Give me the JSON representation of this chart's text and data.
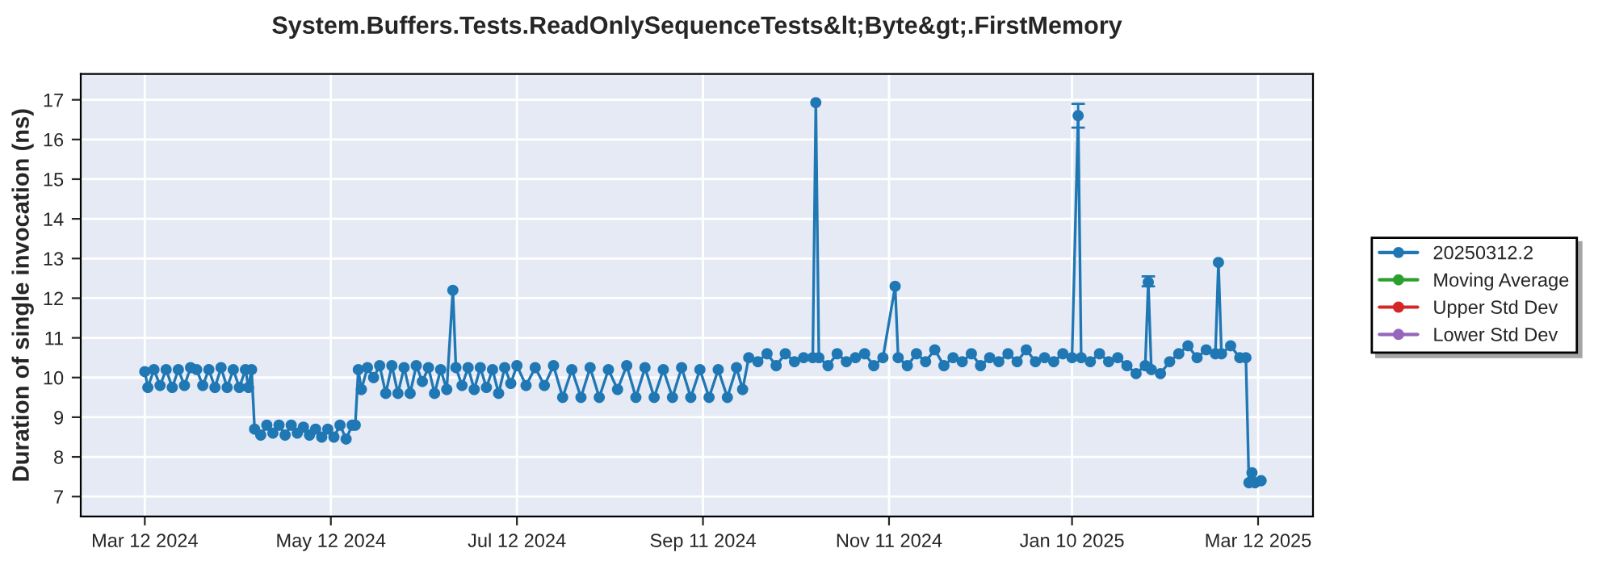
{
  "chart_data": {
    "type": "line",
    "title": "System.Buffers.Tests.ReadOnlySequenceTests&lt;Byte&gt;.FirstMemory",
    "ylabel": "Duration of single invocation (ns)",
    "xlim": [
      "2024-02-20",
      "2025-03-30"
    ],
    "xticks": [
      {
        "value": "2024-03-12",
        "label": "Mar 12 2024"
      },
      {
        "value": "2024-05-12",
        "label": "May 12 2024"
      },
      {
        "value": "2024-07-12",
        "label": "Jul 12 2024"
      },
      {
        "value": "2024-09-11",
        "label": "Sep 11 2024"
      },
      {
        "value": "2024-11-11",
        "label": "Nov 11 2024"
      },
      {
        "value": "2025-01-10",
        "label": "Jan 10 2025"
      },
      {
        "value": "2025-03-12",
        "label": "Mar 12 2025"
      }
    ],
    "ylim": [
      6.5,
      17.65
    ],
    "yticks": [
      7,
      8,
      9,
      10,
      11,
      12,
      13,
      14,
      15,
      16,
      17
    ],
    "grid": true,
    "legend": "right",
    "marker": "circle",
    "line_style": "solid",
    "series": [
      {
        "name": "20250312.2",
        "color": "#1f77b4",
        "x": [
          "2024-03-12",
          "2024-03-13",
          "2024-03-15",
          "2024-03-17",
          "2024-03-19",
          "2024-03-21",
          "2024-03-23",
          "2024-03-25",
          "2024-03-27",
          "2024-03-29",
          "2024-03-31",
          "2024-04-02",
          "2024-04-04",
          "2024-04-06",
          "2024-04-08",
          "2024-04-10",
          "2024-04-12",
          "2024-04-14",
          "2024-04-15",
          "2024-04-16",
          "2024-04-17",
          "2024-04-19",
          "2024-04-21",
          "2024-04-23",
          "2024-04-25",
          "2024-04-27",
          "2024-04-29",
          "2024-05-01",
          "2024-05-03",
          "2024-05-05",
          "2024-05-07",
          "2024-05-09",
          "2024-05-11",
          "2024-05-13",
          "2024-05-15",
          "2024-05-17",
          "2024-05-19",
          "2024-05-20",
          "2024-05-21",
          "2024-05-22",
          "2024-05-24",
          "2024-05-26",
          "2024-05-28",
          "2024-05-30",
          "2024-06-01",
          "2024-06-03",
          "2024-06-05",
          "2024-06-07",
          "2024-06-09",
          "2024-06-11",
          "2024-06-13",
          "2024-06-15",
          "2024-06-17",
          "2024-06-19",
          "2024-06-21",
          "2024-06-22",
          "2024-06-24",
          "2024-06-26",
          "2024-06-28",
          "2024-06-30",
          "2024-07-02",
          "2024-07-04",
          "2024-07-06",
          "2024-07-08",
          "2024-07-10",
          "2024-07-12",
          "2024-07-15",
          "2024-07-18",
          "2024-07-21",
          "2024-07-24",
          "2024-07-27",
          "2024-07-30",
          "2024-08-02",
          "2024-08-05",
          "2024-08-08",
          "2024-08-11",
          "2024-08-14",
          "2024-08-17",
          "2024-08-20",
          "2024-08-23",
          "2024-08-26",
          "2024-08-29",
          "2024-09-01",
          "2024-09-04",
          "2024-09-07",
          "2024-09-10",
          "2024-09-13",
          "2024-09-16",
          "2024-09-19",
          "2024-09-22",
          "2024-09-24",
          "2024-09-26",
          "2024-09-29",
          "2024-10-02",
          "2024-10-05",
          "2024-10-08",
          "2024-10-11",
          "2024-10-14",
          "2024-10-17",
          "2024-10-18",
          "2024-10-19",
          "2024-10-22",
          "2024-10-25",
          "2024-10-28",
          "2024-10-31",
          "2024-11-03",
          "2024-11-06",
          "2024-11-09",
          "2024-11-13",
          "2024-11-14",
          "2024-11-17",
          "2024-11-20",
          "2024-11-23",
          "2024-11-26",
          "2024-11-29",
          "2024-12-02",
          "2024-12-05",
          "2024-12-08",
          "2024-12-11",
          "2024-12-14",
          "2024-12-17",
          "2024-12-20",
          "2024-12-23",
          "2024-12-26",
          "2024-12-29",
          "2025-01-01",
          "2025-01-04",
          "2025-01-07",
          "2025-01-10",
          "2025-01-12",
          "2025-01-13",
          "2025-01-16",
          "2025-01-19",
          "2025-01-22",
          "2025-01-25",
          "2025-01-28",
          "2025-01-31",
          "2025-02-03",
          "2025-02-04",
          "2025-02-05",
          "2025-02-08",
          "2025-02-11",
          "2025-02-14",
          "2025-02-17",
          "2025-02-20",
          "2025-02-23",
          "2025-02-26",
          "2025-02-27",
          "2025-02-28",
          "2025-03-03",
          "2025-03-06",
          "2025-03-08",
          "2025-03-09",
          "2025-03-10",
          "2025-03-11",
          "2025-03-13"
        ],
        "values": [
          10.15,
          9.75,
          10.2,
          9.8,
          10.2,
          9.75,
          10.2,
          9.8,
          10.25,
          10.2,
          9.8,
          10.2,
          9.75,
          10.25,
          9.75,
          10.2,
          9.75,
          10.2,
          9.75,
          10.2,
          8.7,
          8.55,
          8.8,
          8.6,
          8.8,
          8.55,
          8.8,
          8.6,
          8.75,
          8.55,
          8.7,
          8.5,
          8.7,
          8.5,
          8.8,
          8.45,
          8.8,
          8.8,
          10.2,
          9.7,
          10.25,
          10.0,
          10.3,
          9.6,
          10.3,
          9.6,
          10.25,
          9.6,
          10.3,
          9.9,
          10.25,
          9.6,
          10.2,
          9.7,
          12.2,
          10.25,
          9.8,
          10.25,
          9.7,
          10.25,
          9.75,
          10.2,
          9.6,
          10.25,
          9.85,
          10.3,
          9.8,
          10.25,
          9.8,
          10.3,
          9.5,
          10.2,
          9.5,
          10.25,
          9.5,
          10.2,
          9.7,
          10.3,
          9.5,
          10.25,
          9.5,
          10.2,
          9.5,
          10.25,
          9.5,
          10.2,
          9.5,
          10.2,
          9.5,
          10.25,
          9.7,
          10.5,
          10.4,
          10.6,
          10.3,
          10.6,
          10.4,
          10.5,
          10.5,
          16.93,
          10.5,
          10.3,
          10.6,
          10.4,
          10.5,
          10.6,
          10.3,
          10.5,
          12.3,
          10.5,
          10.3,
          10.6,
          10.4,
          10.7,
          10.3,
          10.5,
          10.4,
          10.6,
          10.3,
          10.5,
          10.4,
          10.6,
          10.4,
          10.7,
          10.4,
          10.5,
          10.4,
          10.6,
          10.5,
          16.6,
          10.5,
          10.4,
          10.6,
          10.4,
          10.5,
          10.3,
          10.1,
          10.3,
          12.4,
          10.2,
          10.1,
          10.4,
          10.6,
          10.8,
          10.5,
          10.7,
          10.6,
          12.9,
          10.6,
          10.8,
          10.5,
          10.5,
          7.35,
          7.6,
          7.35,
          7.4
        ],
        "errors": [
          null,
          null,
          null,
          null,
          null,
          null,
          null,
          null,
          null,
          null,
          null,
          null,
          null,
          null,
          null,
          null,
          null,
          null,
          null,
          null,
          null,
          null,
          null,
          null,
          null,
          null,
          null,
          null,
          null,
          null,
          null,
          null,
          null,
          null,
          null,
          null,
          null,
          null,
          null,
          null,
          null,
          null,
          null,
          null,
          null,
          null,
          null,
          null,
          null,
          null,
          null,
          null,
          null,
          null,
          null,
          null,
          null,
          null,
          null,
          null,
          null,
          null,
          null,
          null,
          null,
          null,
          null,
          null,
          null,
          null,
          null,
          null,
          null,
          null,
          null,
          null,
          null,
          null,
          null,
          null,
          null,
          null,
          null,
          null,
          null,
          null,
          null,
          null,
          null,
          null,
          null,
          null,
          null,
          null,
          null,
          null,
          null,
          null,
          null,
          null,
          null,
          null,
          null,
          null,
          null,
          null,
          null,
          null,
          null,
          null,
          null,
          null,
          null,
          null,
          null,
          null,
          null,
          null,
          null,
          null,
          null,
          null,
          null,
          null,
          null,
          null,
          null,
          null,
          null,
          [
            16.3,
            16.9
          ],
          null,
          null,
          null,
          null,
          null,
          null,
          null,
          null,
          [
            12.3,
            12.55
          ],
          null,
          null,
          null,
          null,
          null,
          null,
          null,
          null,
          null,
          null,
          null,
          null,
          null,
          null,
          null,
          null,
          null
        ]
      },
      {
        "name": "Moving Average",
        "color": "#2ca02c"
      },
      {
        "name": "Upper Std Dev",
        "color": "#d62728"
      },
      {
        "name": "Lower Std Dev",
        "color": "#9467bd"
      }
    ]
  }
}
